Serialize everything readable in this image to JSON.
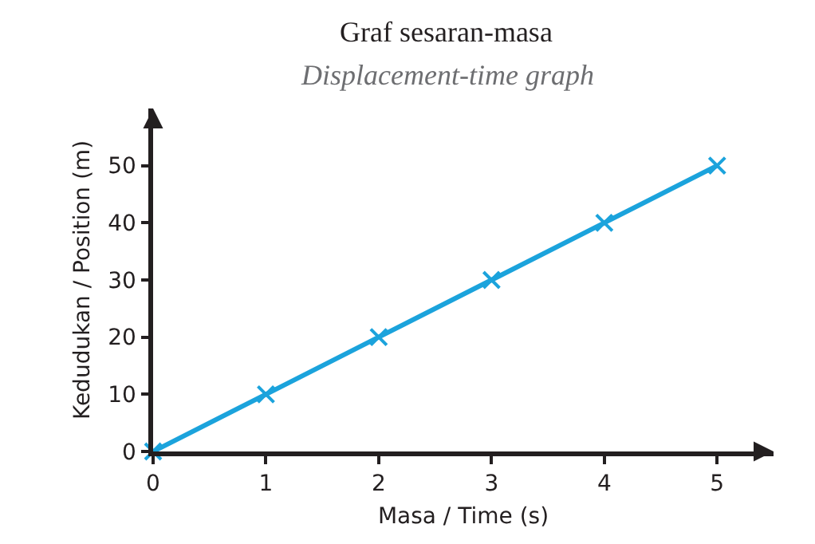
{
  "chart_data": {
    "type": "line",
    "title": "Graf sesaran-masa",
    "subtitle": "Displacement-time graph",
    "xlabel": "Masa / Time (s)",
    "ylabel": "Kedudukan / Position (m)",
    "x": [
      0,
      1,
      2,
      3,
      4,
      5
    ],
    "series": [
      {
        "color": "#1ba3dc",
        "values": [
          0,
          10,
          20,
          30,
          40,
          50
        ]
      }
    ],
    "xlim": [
      0,
      5.5
    ],
    "xticks": [
      0,
      1,
      2,
      3,
      4,
      5
    ],
    "ylim": [
      0,
      60
    ],
    "yticks": [
      0,
      10,
      20,
      30,
      40,
      50
    ],
    "grid": false,
    "marker": "cross",
    "line_style": "solid"
  }
}
